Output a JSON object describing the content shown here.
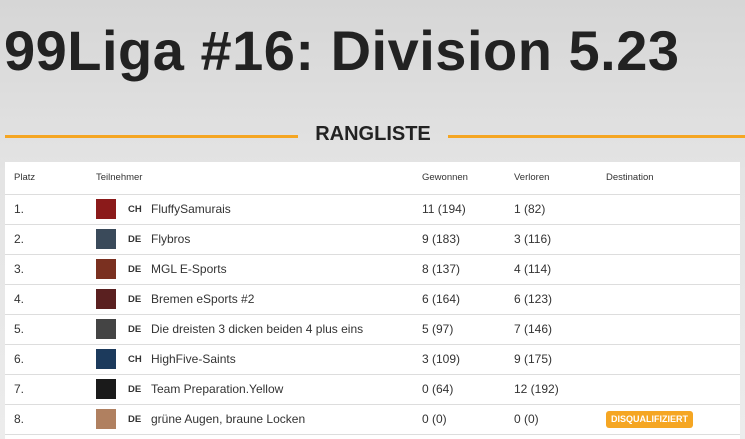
{
  "header": {
    "title": "99Liga #16: Division 5.23"
  },
  "section": {
    "title": "RANGLISTE"
  },
  "table": {
    "columns": [
      "Platz",
      "Teilnehmer",
      "Gewonnen",
      "Verloren",
      "Destination"
    ],
    "rows": [
      {
        "rank": "1.",
        "country": "CH",
        "team": "FluffySamurais",
        "won": "11 (194)",
        "lost": "1 (82)"
      },
      {
        "rank": "2.",
        "country": "DE",
        "team": "Flybros",
        "won": "9 (183)",
        "lost": "3 (116)"
      },
      {
        "rank": "3.",
        "country": "DE",
        "team": "MGL E-Sports",
        "won": "8 (137)",
        "lost": "4 (114)"
      },
      {
        "rank": "4.",
        "country": "DE",
        "team": "Bremen eSports #2",
        "won": "6 (164)",
        "lost": "6 (123)"
      },
      {
        "rank": "5.",
        "country": "DE",
        "team": "Die dreisten 3 dicken beiden 4 plus eins",
        "won": "5 (97)",
        "lost": "7 (146)"
      },
      {
        "rank": "6.",
        "country": "CH",
        "team": "HighFive-Saints",
        "won": "3 (109)",
        "lost": "9 (175)"
      },
      {
        "rank": "7.",
        "country": "DE",
        "team": "Team Preparation.Yellow",
        "won": "0 (64)",
        "lost": "12 (192)"
      },
      {
        "rank": "8.",
        "country": "DE",
        "team": "grüne Augen, braune Locken",
        "won": "0 (0)",
        "lost": "0 (0)",
        "destination": "DISQUALIFIZIERT"
      }
    ]
  }
}
